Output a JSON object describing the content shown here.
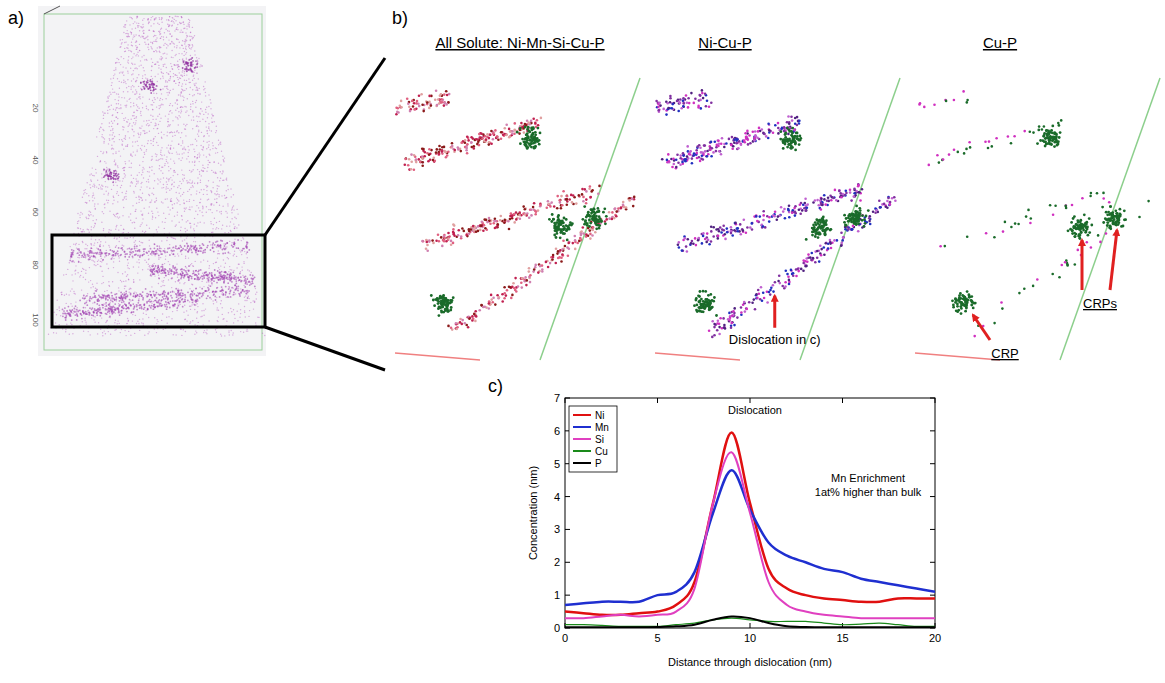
{
  "figure": {
    "panel_labels": [
      "a)",
      "b)",
      "c)"
    ],
    "panel_a": {
      "tick_labels": [
        "20",
        "40",
        "60",
        "80",
        "100"
      ]
    },
    "panel_b": {
      "panels": [
        {
          "title": "All Solute: Ni-Mn-Si-Cu-P"
        },
        {
          "title": "Ni-Cu-P",
          "annotation": "Dislocation in c)"
        },
        {
          "title": "Cu-P",
          "annotations": [
            "CRPs",
            "CRP"
          ]
        }
      ]
    }
  },
  "chart_data": {
    "type": "line",
    "title": "Dislocation",
    "x_label": "Distance through dislocation (nm)",
    "y_label": "Concentration (nm)",
    "annotations": [
      "Mn Enrichment",
      "1at% higher than bulk"
    ],
    "x": [
      0,
      1,
      2,
      3,
      4,
      5,
      6,
      7,
      8,
      9,
      10,
      11,
      12,
      13,
      14,
      15,
      16,
      17,
      18,
      19,
      20
    ],
    "series": [
      {
        "name": "Ni",
        "color": "#e01010",
        "values": [
          0.5,
          0.45,
          0.4,
          0.4,
          0.45,
          0.5,
          0.7,
          1.4,
          3.8,
          5.95,
          3.8,
          1.8,
          1.2,
          1.0,
          0.9,
          0.85,
          0.8,
          0.8,
          0.9,
          0.9,
          0.9
        ]
      },
      {
        "name": "Mn",
        "color": "#1f2fd0",
        "values": [
          0.7,
          0.75,
          0.8,
          0.8,
          0.8,
          1.0,
          1.1,
          1.7,
          3.5,
          4.8,
          3.6,
          2.6,
          2.2,
          2.0,
          1.8,
          1.7,
          1.5,
          1.4,
          1.3,
          1.2,
          1.1
        ]
      },
      {
        "name": "Si",
        "color": "#e040c0",
        "values": [
          0.3,
          0.3,
          0.35,
          0.4,
          0.35,
          0.4,
          0.5,
          1.2,
          3.8,
          5.35,
          3.5,
          1.4,
          0.7,
          0.5,
          0.4,
          0.35,
          0.3,
          0.3,
          0.3,
          0.3,
          0.3
        ]
      },
      {
        "name": "Cu",
        "color": "#1a8a1a",
        "values": [
          0.1,
          0.1,
          0.08,
          0.05,
          0.05,
          0.05,
          0.1,
          0.15,
          0.25,
          0.3,
          0.25,
          0.2,
          0.2,
          0.2,
          0.15,
          0.1,
          0.12,
          0.15,
          0.1,
          0.05,
          0.05
        ]
      },
      {
        "name": "P",
        "color": "#000000",
        "values": [
          0.02,
          0.02,
          0.02,
          0.02,
          0.02,
          0.03,
          0.05,
          0.1,
          0.25,
          0.35,
          0.3,
          0.15,
          0.05,
          0.03,
          0.02,
          0.02,
          0.02,
          0.02,
          0.02,
          0.02,
          0.02
        ]
      }
    ],
    "xlim": [
      0,
      20
    ],
    "xticks": [
      0,
      5,
      10,
      15,
      20
    ],
    "ylim": [
      0,
      7
    ],
    "yticks": [
      0,
      1,
      2,
      3,
      4,
      5,
      6,
      7
    ],
    "grid": false,
    "legend": "upper left"
  }
}
